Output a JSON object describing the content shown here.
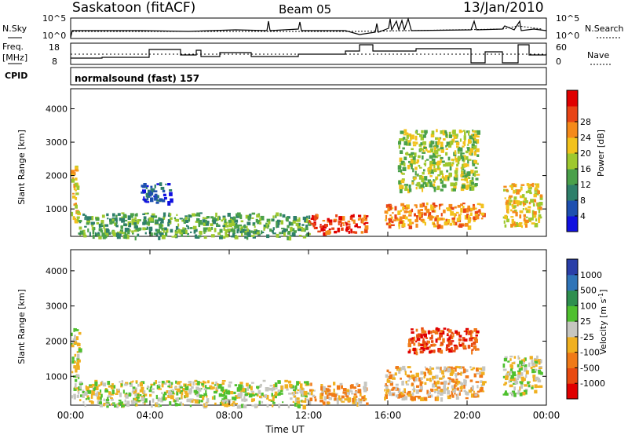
{
  "header": {
    "station": "Saskatoon (fitACF)",
    "beam": "Beam 05",
    "date": "13/Jan/2010"
  },
  "nsky_panel": {
    "left_label": "N.Sky",
    "right_label": "N.Search",
    "tick_labels": [
      "10^5",
      "10^0"
    ]
  },
  "freq_panel": {
    "left_label_line1": "Freq.",
    "left_label_line2": "[MHz]",
    "left_ticks": [
      "18",
      "8"
    ],
    "right_ticks": [
      "60",
      "0"
    ],
    "right_label": "Nave"
  },
  "cpid": {
    "label": "CPID",
    "value": "normalsound (fast) 157"
  },
  "chart_data": [
    {
      "type": "heatmap",
      "title": "Power",
      "ylabel": "Slant Range [km]",
      "xlabel": "",
      "y_ticks": [
        "1000",
        "2000",
        "3000",
        "4000"
      ],
      "ylim": [
        180,
        4600
      ],
      "xlim": [
        "00:00",
        "24:00"
      ],
      "colorbar": {
        "label": "Power [dB]",
        "ticks": [
          "4",
          "8",
          "12",
          "16",
          "20",
          "24",
          "28"
        ],
        "colors": [
          "#1010e0",
          "#1d4fb0",
          "#2e7f6a",
          "#4aa04a",
          "#9ec82e",
          "#f2c21c",
          "#f58a1a",
          "#e84416",
          "#e00000"
        ]
      },
      "regions": [
        {
          "t": [
            0.0,
            0.35
          ],
          "r": [
            500,
            2300
          ],
          "level": 5
        },
        {
          "t": [
            0.3,
            12.0
          ],
          "r": [
            180,
            900
          ],
          "level": 3
        },
        {
          "t": [
            3.5,
            5.0
          ],
          "r": [
            1200,
            1800
          ],
          "level": 1
        },
        {
          "t": [
            12.0,
            14.9
          ],
          "r": [
            300,
            850
          ],
          "level": 7
        },
        {
          "t": [
            15.8,
            20.8
          ],
          "r": [
            500,
            1200
          ],
          "level": 6
        },
        {
          "t": [
            16.5,
            20.5
          ],
          "r": [
            1600,
            3400
          ],
          "level": 4
        },
        {
          "t": [
            21.8,
            23.7
          ],
          "r": [
            500,
            1800
          ],
          "level": 5
        }
      ]
    },
    {
      "type": "heatmap",
      "title": "Velocity",
      "ylabel": "Slant Range [km]",
      "xlabel": "Time UT",
      "x_ticks": [
        "00:00",
        "04:00",
        "08:00",
        "12:00",
        "16:00",
        "20:00",
        "00:00"
      ],
      "y_ticks": [
        "1000",
        "2000",
        "3000",
        "4000"
      ],
      "ylim": [
        180,
        4600
      ],
      "xlim": [
        "00:00",
        "24:00"
      ],
      "colorbar": {
        "label": "Velocity [m s^-1]",
        "ticks": [
          "1000",
          "500",
          "100",
          "25",
          "-25",
          "-100",
          "-500",
          "-1000"
        ],
        "colors": [
          "#2a3fa8",
          "#2f74b8",
          "#2e8f4f",
          "#4fc02f",
          "#c6c6c0",
          "#f0b020",
          "#f07a18",
          "#e84a10",
          "#e00000"
        ]
      },
      "regions": [
        {
          "t": [
            0.0,
            0.4
          ],
          "r": [
            400,
            2400
          ],
          "level": 4
        },
        {
          "t": [
            0.3,
            12.0
          ],
          "r": [
            180,
            900
          ],
          "level": 4
        },
        {
          "t": [
            12.0,
            14.9
          ],
          "r": [
            250,
            850
          ],
          "level": 5
        },
        {
          "t": [
            15.8,
            20.8
          ],
          "r": [
            400,
            1300
          ],
          "level": 5
        },
        {
          "t": [
            17.0,
            20.5
          ],
          "r": [
            1700,
            2400
          ],
          "level": 7
        },
        {
          "t": [
            21.8,
            23.7
          ],
          "r": [
            500,
            1600
          ],
          "level": 4
        }
      ]
    }
  ]
}
